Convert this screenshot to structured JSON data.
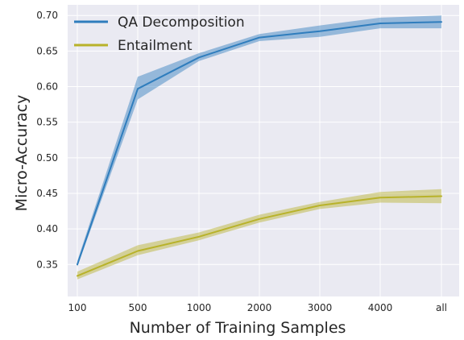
{
  "chart_data": {
    "type": "line",
    "title": "",
    "xlabel": "Number of Training Samples",
    "ylabel": "Micro-Accuracy",
    "categories": [
      "100",
      "500",
      "1000",
      "2000",
      "3000",
      "4000",
      "all"
    ],
    "ylim": [
      0.305,
      0.715
    ],
    "yticks": [
      0.35,
      0.4,
      0.45,
      0.5,
      0.55,
      0.6,
      0.65,
      0.7
    ],
    "ytick_labels": [
      "0.35",
      "0.40",
      "0.45",
      "0.50",
      "0.55",
      "0.60",
      "0.65",
      "0.70"
    ],
    "grid": true,
    "background": "#eaeaf2",
    "legend_position": "top-left",
    "series": [
      {
        "name": "QA Decomposition",
        "color": "#2f7dbd",
        "values": [
          0.35,
          0.597,
          0.641,
          0.669,
          0.678,
          0.689,
          0.691
        ],
        "lower": [
          0.347,
          0.582,
          0.636,
          0.664,
          0.67,
          0.682,
          0.682
        ],
        "upper": [
          0.355,
          0.614,
          0.647,
          0.674,
          0.686,
          0.697,
          0.7
        ]
      },
      {
        "name": "Entailment",
        "color": "#b8b22a",
        "values": [
          0.334,
          0.369,
          0.389,
          0.414,
          0.433,
          0.444,
          0.446
        ],
        "lower": [
          0.329,
          0.363,
          0.384,
          0.409,
          0.428,
          0.437,
          0.436
        ],
        "upper": [
          0.34,
          0.377,
          0.395,
          0.42,
          0.438,
          0.452,
          0.456
        ]
      }
    ]
  }
}
